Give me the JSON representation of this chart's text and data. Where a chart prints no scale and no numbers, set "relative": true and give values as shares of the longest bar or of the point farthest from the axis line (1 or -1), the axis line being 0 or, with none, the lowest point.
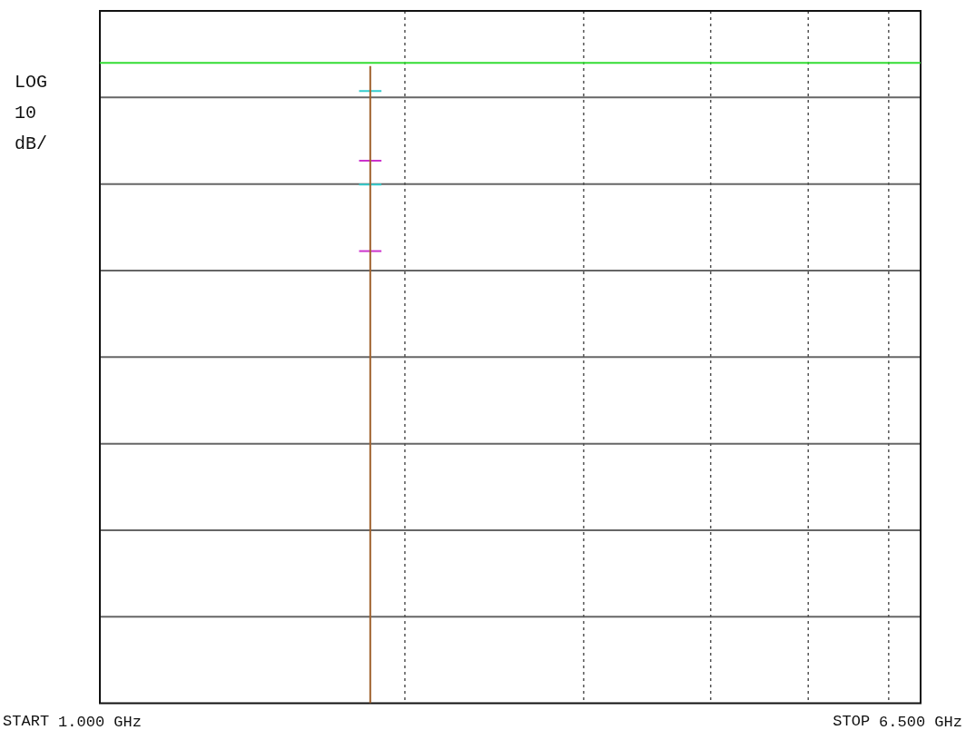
{
  "chart_data": {
    "type": "line",
    "relative": true,
    "ylabel": "LOG 10 dB/",
    "xlim": [
      1,
      6.5
    ],
    "xticks": [
      {
        "value": 1,
        "label": "1.000 GHz"
      },
      {
        "value": 6.5,
        "label": "6.500 GHz"
      }
    ],
    "annotations": [
      "START",
      "STOP"
    ],
    "grid": "y",
    "legend": false,
    "line_style": "solid",
    "marker": "none",
    "series": [
      {
        "color": "#33dd33",
        "x": [
          1,
          6.5
        ],
        "values": [
          1,
          1
        ]
      },
      {
        "color": "#a0622d",
        "x": [
          2.812,
          2.812
        ],
        "values": [
          0,
          0.995
        ]
      },
      {
        "color": "#33cccc",
        "x": [
          2.737,
          2.887
        ],
        "values": [
          0.956,
          0.956
        ]
      },
      {
        "color": "#33cccc",
        "x": [
          2.737,
          2.887
        ],
        "values": [
          0.81,
          0.81
        ]
      },
      {
        "color": "#cc33cc",
        "x": [
          2.737,
          2.887
        ],
        "values": [
          0.847,
          0.847
        ]
      },
      {
        "color": "#cc33cc",
        "x": [
          2.737,
          2.887
        ],
        "values": [
          0.706,
          0.706
        ]
      }
    ],
    "ref_lines": [
      {
        "axis": "x",
        "value": 3.044,
        "color": "#555555",
        "line_style": "dotted"
      },
      {
        "axis": "x",
        "value": 4.242,
        "color": "#555555",
        "line_style": "dotted"
      },
      {
        "axis": "x",
        "value": 5.093,
        "color": "#555555",
        "line_style": "dotted"
      },
      {
        "axis": "x",
        "value": 5.747,
        "color": "#555555",
        "line_style": "dotted"
      },
      {
        "axis": "x",
        "value": 6.286,
        "color": "#555555",
        "line_style": "dotted"
      }
    ]
  }
}
